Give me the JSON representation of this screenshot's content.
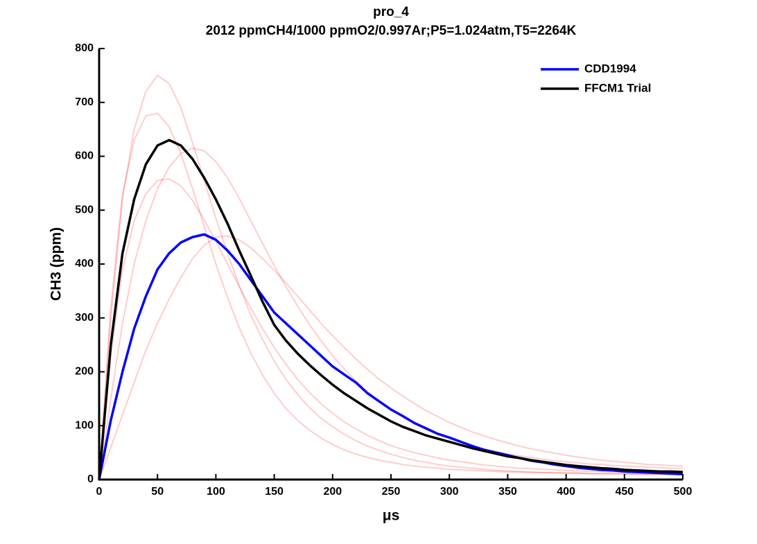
{
  "chart_data": {
    "type": "line",
    "title": "pro_4",
    "subtitle": "2012 ppmCH4/1000 ppmO2/0.997Ar;P5=1.024atm,T5=2264K",
    "x_label": "μs",
    "y_label": "CH3 (ppm)",
    "xlim": [
      0,
      500
    ],
    "ylim": [
      0,
      800
    ],
    "xticks": [
      0,
      50,
      100,
      150,
      200,
      250,
      300,
      350,
      400,
      450,
      500
    ],
    "yticks": [
      0,
      100,
      200,
      300,
      400,
      500,
      600,
      700,
      800
    ],
    "legend": "upper right",
    "x": [
      0,
      10,
      20,
      30,
      40,
      50,
      60,
      70,
      80,
      90,
      100,
      110,
      120,
      130,
      140,
      150,
      160,
      170,
      180,
      190,
      200,
      210,
      220,
      230,
      240,
      250,
      260,
      270,
      280,
      290,
      300,
      310,
      320,
      330,
      340,
      350,
      360,
      370,
      380,
      390,
      400,
      410,
      420,
      430,
      440,
      450,
      460,
      470,
      480,
      490,
      500
    ],
    "series": [
      {
        "color": "#ff0000",
        "values": [
          0,
          300,
          520,
          650,
          720,
          750,
          735,
          690,
          625,
          555,
          485,
          420,
          360,
          305,
          260,
          220,
          186,
          158,
          134,
          114,
          98,
          84,
          72,
          62,
          54,
          47,
          41,
          36,
          32,
          28,
          25,
          23,
          21,
          19,
          17,
          16,
          15,
          14,
          13,
          13,
          12,
          12,
          11,
          11,
          11,
          10,
          10,
          10,
          10,
          10,
          10
        ]
      },
      {
        "color": "#ff0000",
        "values": [
          0,
          60,
          120,
          180,
          240,
          290,
          335,
          375,
          410,
          435,
          450,
          452,
          445,
          430,
          410,
          388,
          365,
          340,
          315,
          290,
          267,
          245,
          224,
          204,
          186,
          170,
          155,
          141,
          128,
          117,
          106,
          97,
          88,
          81,
          74,
          68,
          62,
          57,
          53,
          49,
          45,
          42,
          39,
          36,
          34,
          32,
          30,
          28,
          27,
          26,
          25
        ]
      },
      {
        "color": "#ff0000",
        "values": [
          0,
          320,
          530,
          630,
          675,
          680,
          655,
          605,
          540,
          470,
          400,
          338,
          282,
          234,
          194,
          160,
          132,
          110,
          92,
          77,
          65,
          55,
          47,
          41,
          36,
          32,
          28,
          25,
          23,
          21,
          19,
          18,
          17,
          16,
          15,
          14,
          14,
          13,
          13,
          12,
          12,
          12,
          11,
          11,
          11,
          11,
          10,
          10,
          10,
          10,
          10
        ]
      },
      {
        "color": "#ff0000",
        "values": [
          0,
          150,
          290,
          400,
          480,
          540,
          580,
          605,
          615,
          610,
          590,
          560,
          522,
          480,
          438,
          397,
          358,
          322,
          288,
          258,
          230,
          205,
          183,
          163,
          145,
          130,
          116,
          104,
          93,
          84,
          76,
          69,
          62,
          57,
          52,
          48,
          44,
          41,
          38,
          35,
          33,
          31,
          29,
          28,
          26,
          25,
          24,
          23,
          22,
          21,
          21
        ]
      },
      {
        "color": "#ff0000",
        "values": [
          0,
          230,
          390,
          480,
          530,
          555,
          558,
          545,
          518,
          482,
          442,
          400,
          358,
          318,
          280,
          245,
          214,
          186,
          162,
          141,
          123,
          107,
          94,
          82,
          72,
          63,
          56,
          50,
          45,
          40,
          36,
          33,
          30,
          27,
          25,
          23,
          21,
          20,
          19,
          18,
          17,
          16,
          15,
          15,
          14,
          14,
          13,
          13,
          13,
          12,
          12
        ]
      },
      {
        "name": "CDD1994",
        "color": "#0000ff",
        "values": [
          0,
          110,
          200,
          280,
          340,
          390,
          420,
          440,
          450,
          455,
          445,
          425,
          400,
          370,
          340,
          310,
          290,
          270,
          250,
          230,
          210,
          195,
          180,
          160,
          145,
          130,
          118,
          105,
          95,
          85,
          78,
          70,
          62,
          55,
          50,
          45,
          40,
          35,
          32,
          28,
          25,
          22,
          20,
          18,
          17,
          15,
          14,
          13,
          12,
          11,
          10
        ]
      },
      {
        "name": "FFCM1 Trial",
        "color": "#000000",
        "values": [
          0,
          250,
          420,
          520,
          585,
          620,
          630,
          620,
          595,
          560,
          520,
          475,
          425,
          378,
          330,
          287,
          258,
          234,
          213,
          194,
          176,
          160,
          146,
          132,
          120,
          108,
          98,
          90,
          82,
          76,
          70,
          64,
          58,
          53,
          48,
          43,
          40,
          36,
          33,
          30,
          27,
          25,
          23,
          21,
          20,
          18,
          17,
          16,
          15,
          15,
          14
        ]
      }
    ]
  }
}
